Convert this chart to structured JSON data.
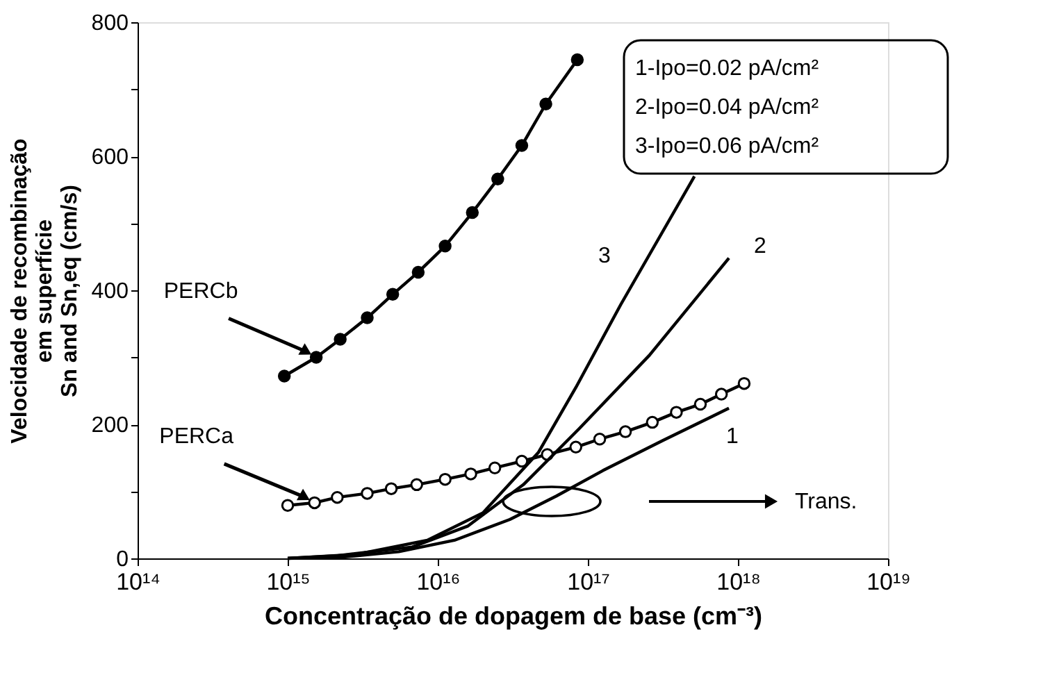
{
  "chart_data": {
    "type": "line",
    "xlabel": "Concentração de dopagem de base  (cm⁻³)",
    "ylabel": "Velocidade de recombinação\nem superfície\nSn and Sn,eq  (cm/s)",
    "log": "x",
    "grid": false,
    "xlim": [
      100000000000000.0,
      1e+19
    ],
    "xticks": [
      {
        "value": 100000000000000.0,
        "label": "10¹⁴"
      },
      {
        "value": 1000000000000000.0,
        "label": "10¹⁵"
      },
      {
        "value": 1e+16,
        "label": "10¹⁶"
      },
      {
        "value": 1e+17,
        "label": "10¹⁷"
      },
      {
        "value": 1e+18,
        "label": "10¹⁸"
      },
      {
        "value": 1e+19,
        "label": "10¹⁹"
      }
    ],
    "ylim": [
      0,
      800
    ],
    "yticks": [
      0,
      {
        "value": 100,
        "label": null
      },
      200,
      {
        "value": 300,
        "label": null
      },
      400,
      {
        "value": 500,
        "label": null
      },
      600,
      {
        "value": 700,
        "label": null
      },
      800
    ],
    "series": [
      {
        "color": "#000000",
        "marker": "circle",
        "x": [
          950000000000000.0,
          1550000000000000.0,
          2240000000000000.0,
          3390000000000000.0,
          5010000000000000.0,
          7410000000000000.0,
          1.12e+16,
          1.7e+16,
          2.51e+16,
          3.63e+16,
          5.25e+16,
          8.51e+16
        ],
        "values": [
          272,
          300,
          327,
          359,
          394,
          427,
          466,
          516,
          566,
          616,
          678,
          744
        ]
      },
      {
        "color": "#000000",
        "marker": "circle",
        "x": [
          1000000000000000.0,
          1510000000000000.0,
          2140000000000000.0,
          3390000000000000.0,
          4900000000000000.0,
          7240000000000000.0,
          1.12e+16,
          1.66e+16,
          2.4e+16,
          3.63e+16,
          5.37e+16,
          8.32e+16,
          1.2e+17,
          1.78e+17,
          2.69e+17,
          3.89e+17,
          5.62e+17,
          7.76e+17,
          1.1e+18
        ],
        "values": [
          79,
          83,
          91,
          97,
          104,
          110,
          118,
          126,
          135,
          145,
          155,
          166,
          178,
          189,
          203,
          218,
          230,
          245,
          261
        ]
      },
      {
        "color": "#000000",
        "marker": "none",
        "x": [
          1000000000000000.0,
          2340000000000000.0,
          5500000000000000.0,
          1.29e+16,
          3.02e+16,
          6.17e+16,
          1.26e+17,
          3.16e+17,
          8.71e+17
        ],
        "values": [
          0,
          2,
          10,
          27,
          58,
          93,
          131,
          176,
          224
        ]
      },
      {
        "color": "#000000",
        "marker": "none",
        "x": [
          1000000000000000.0,
          2140000000000000.0,
          6760000000000000.0,
          1.58e+16,
          3.72e+16,
          8.71e+16,
          2.57e+17,
          8.71e+17
        ],
        "values": [
          0,
          4,
          17,
          48,
          110,
          193,
          303,
          448
        ]
      },
      {
        "color": "#000000",
        "marker": "none",
        "x": [
          1000000000000000.0,
          2880000000000000.0,
          8510000000000000.0,
          2e+16,
          4.68e+16,
          8.32e+16,
          1.66e+17,
          5.13e+17
        ],
        "values": [
          0,
          6,
          27,
          68,
          158,
          255,
          379,
          570
        ]
      }
    ],
    "annotations": [
      {
        "text": "PERCb",
        "x": 1550000000000000.0,
        "y": 300
      },
      {
        "text": "PERCa",
        "x": 1510000000000000.0,
        "y": 83
      },
      "3",
      "2",
      "1",
      "Trans.",
      "1-Ipo=0.02   pA/cm²",
      "2-Ipo=0.04   pA/cm²",
      "3-Ipo=0.06   pA/cm²"
    ]
  }
}
